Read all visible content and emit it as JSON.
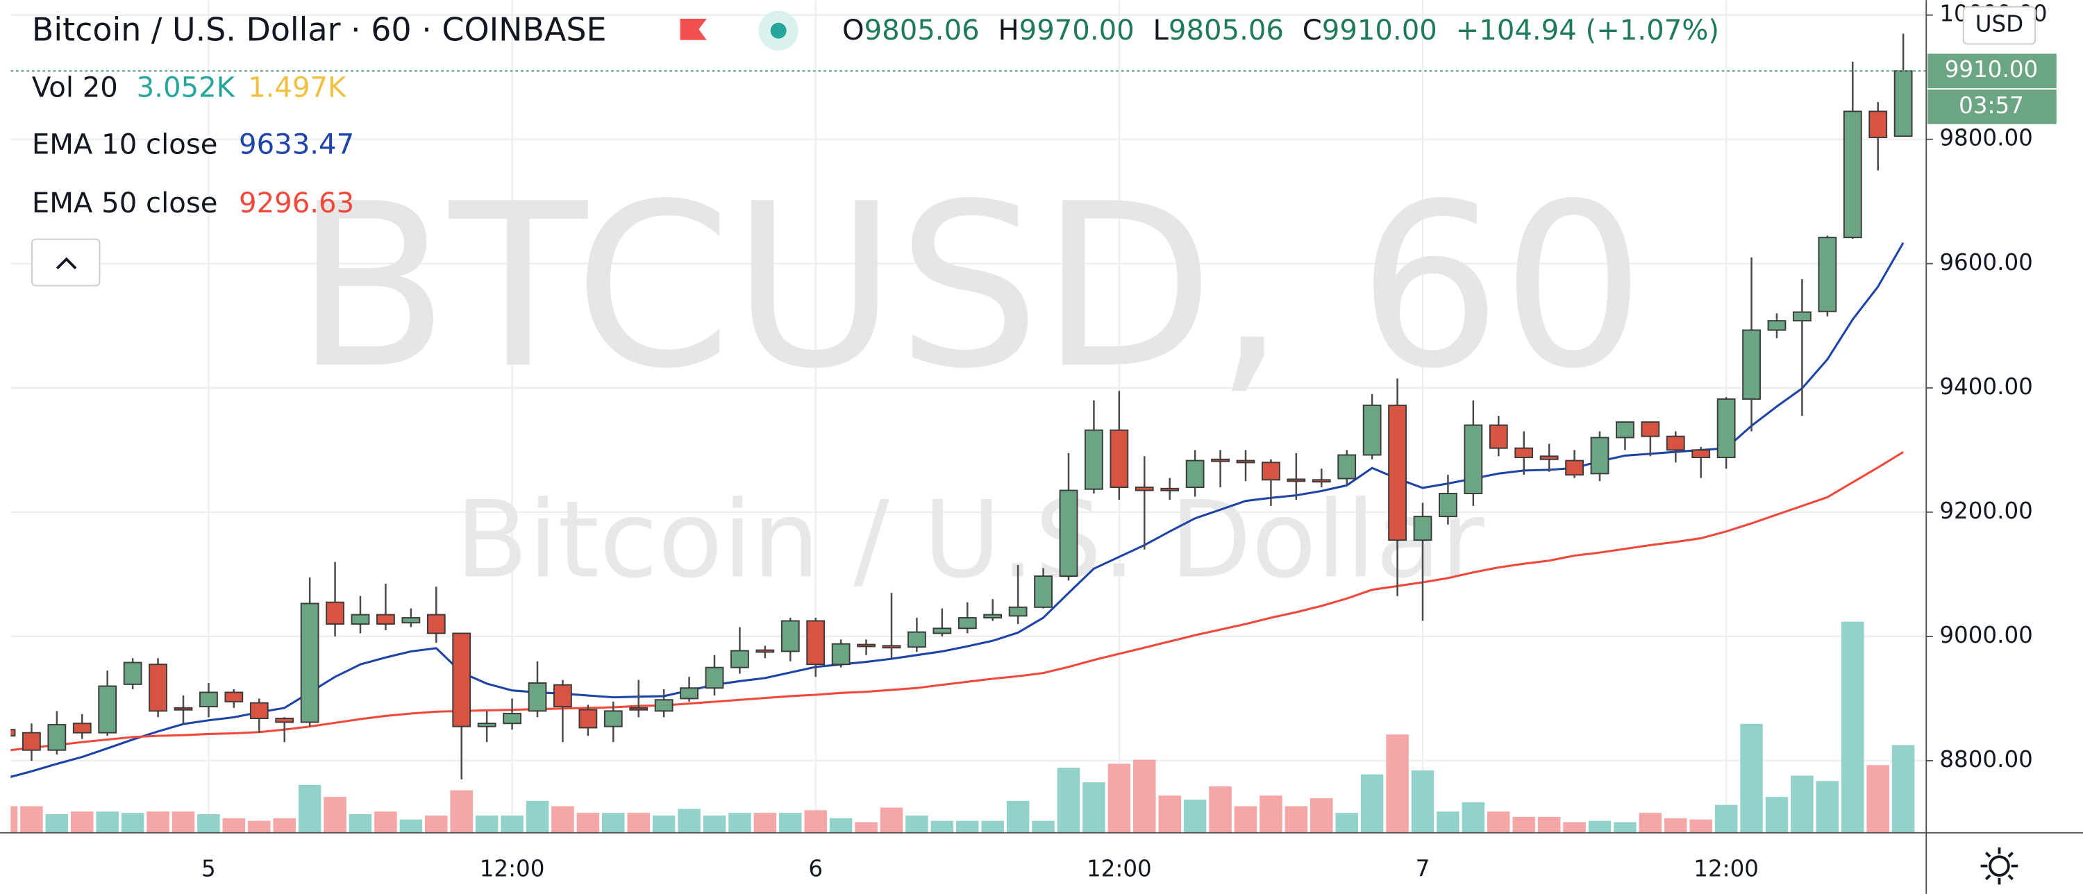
{
  "header": {
    "symbol": "Bitcoin / U.S. Dollar · 60 · COINBASE",
    "ohlc": [
      {
        "label": "O",
        "value": "9805.06"
      },
      {
        "label": "H",
        "value": "9970.00"
      },
      {
        "label": "L",
        "value": "9805.06"
      },
      {
        "label": "C",
        "value": "9910.00"
      }
    ],
    "change": "+104.94 (+1.07%)"
  },
  "watermark": {
    "big": "BTCUSD, 60",
    "small": "Bitcoin / U.S. Dollar"
  },
  "currency": "USD",
  "last_price_label": "9910.00",
  "countdown": "03:57",
  "chart_data": {
    "type": "candlestick",
    "categories": [
      null,
      null,
      null,
      null,
      null,
      null,
      null,
      null,
      "5",
      null,
      null,
      null,
      null,
      null,
      null,
      null,
      null,
      null,
      null,
      null,
      "12:00",
      null,
      null,
      null,
      null,
      null,
      null,
      null,
      null,
      null,
      null,
      null,
      "6",
      null,
      null,
      null,
      null,
      null,
      null,
      null,
      null,
      null,
      null,
      null,
      "12:00",
      null,
      null,
      null,
      null,
      null,
      null,
      null,
      null,
      null,
      null,
      null,
      "7",
      null,
      null,
      null,
      null,
      null,
      null,
      null,
      null,
      null,
      null,
      null,
      "12:00",
      null,
      null,
      null,
      null,
      null,
      null,
      null
    ],
    "open": [
      8850,
      8845,
      8817,
      8860,
      8845,
      8923,
      8955,
      8885,
      8887,
      8910,
      8893,
      8868,
      8862,
      9055,
      9020,
      9035,
      9022,
      9035,
      9005,
      8855,
      8860,
      8880,
      8922,
      8882,
      8855,
      8885,
      8880,
      8900,
      8917,
      8950,
      8978,
      8976,
      9025,
      8955,
      8987,
      8985,
      8983,
      9005,
      9013,
      9030,
      9033,
      9047,
      9097,
      9237,
      9332,
      9240,
      9238,
      9240,
      9285,
      9283,
      9280,
      9253,
      9252,
      9254,
      9292,
      9372,
      9155,
      9193,
      9230,
      9340,
      9303,
      9290,
      9283,
      9262,
      9320,
      9345,
      9322,
      9300,
      9288,
      9382,
      9493,
      9508,
      9523,
      9642,
      9845,
      9805.06
    ],
    "high": [
      8860,
      8860,
      8880,
      8875,
      8945,
      8965,
      8965,
      8905,
      8925,
      8915,
      8900,
      8870,
      9095,
      9120,
      9065,
      9085,
      9045,
      9080,
      9005,
      8880,
      8900,
      8960,
      8930,
      8890,
      8895,
      8930,
      8915,
      8935,
      8970,
      9015,
      8985,
      9030,
      9030,
      8995,
      8995,
      9070,
      9030,
      9045,
      9055,
      9060,
      9115,
      9110,
      9295,
      9380,
      9395,
      9290,
      9255,
      9300,
      9300,
      9300,
      9285,
      9295,
      9270,
      9300,
      9390,
      9415,
      9215,
      9260,
      9380,
      9355,
      9330,
      9310,
      9300,
      9330,
      9345,
      9345,
      9330,
      9305,
      9385,
      9610,
      9520,
      9575,
      9645,
      9925,
      9860,
      9970
    ],
    "low": [
      8830,
      8800,
      8810,
      8835,
      8840,
      8915,
      8870,
      8860,
      8870,
      8885,
      8845,
      8830,
      8855,
      9000,
      9005,
      9010,
      9015,
      8990,
      8770,
      8830,
      8850,
      8870,
      8830,
      8840,
      8830,
      8870,
      8870,
      8895,
      8905,
      8940,
      8965,
      8960,
      8935,
      8950,
      8970,
      8965,
      8975,
      9000,
      9005,
      9025,
      9020,
      9045,
      9090,
      9230,
      9220,
      9140,
      9220,
      9225,
      9240,
      9250,
      9210,
      9220,
      9240,
      9245,
      9285,
      9065,
      9025,
      9180,
      9210,
      9290,
      9260,
      9265,
      9255,
      9250,
      9300,
      9290,
      9280,
      9255,
      9270,
      9330,
      9480,
      9355,
      9515,
      9640,
      9750,
      9805.06
    ],
    "close": [
      8840,
      8817,
      8858,
      8845,
      8920,
      8958,
      8880,
      8882,
      8910,
      8895,
      8868,
      8862,
      9053,
      9020,
      9035,
      9020,
      9030,
      9005,
      8855,
      8860,
      8876,
      8925,
      8887,
      8853,
      8880,
      8882,
      8898,
      8917,
      8950,
      8977,
      8975,
      9025,
      8955,
      8988,
      8985,
      8982,
      9007,
      9013,
      9030,
      9035,
      9047,
      9097,
      9235,
      9332,
      9240,
      9235,
      9235,
      9283,
      9282,
      9280,
      9252,
      9250,
      9250,
      9292,
      9372,
      9155,
      9193,
      9230,
      9340,
      9303,
      9288,
      9285,
      9260,
      9320,
      9345,
      9322,
      9300,
      9288,
      9382,
      9493,
      9508,
      9522,
      9642,
      9845,
      9803,
      9910
    ],
    "volume": [
      924,
      924,
      647,
      739,
      739,
      693,
      739,
      739,
      647,
      508,
      416,
      508,
      1663,
      1247,
      647,
      739,
      462,
      600,
      1478,
      600,
      600,
      1109,
      924,
      693,
      693,
      693,
      600,
      832,
      600,
      693,
      693,
      693,
      785,
      508,
      370,
      878,
      600,
      416,
      416,
      416,
      1109,
      416,
      2264,
      1756,
      2402,
      2541,
      1294,
      1155,
      1617,
      924,
      1294,
      924,
      1201,
      693,
      2033,
      3419,
      2171,
      739,
      1063,
      739,
      554,
      554,
      370,
      416,
      370,
      693,
      508,
      462,
      970,
      3788,
      1247,
      1987,
      1802,
      7346,
      2356,
      3052
    ],
    "volume_legend": {
      "name": "Vol 20",
      "labels": [
        "3.052K",
        "1.497K"
      ],
      "colors": [
        "#26a69a",
        "#f0c040"
      ]
    },
    "series": [
      {
        "name": "EMA 10 close",
        "color": "#1e44a8",
        "legend_value": "9633.47",
        "values": [
          8772,
          8783,
          8795,
          8806,
          8820,
          8834,
          8847,
          8859,
          8865,
          8870,
          8878,
          8885,
          8910,
          8935,
          8955,
          8966,
          8976,
          8981,
          8942,
          8924,
          8913,
          8910,
          8908,
          8905,
          8902,
          8903,
          8904,
          8913,
          8922,
          8928,
          8933,
          8942,
          8951,
          8955,
          8959,
          8964,
          8970,
          8976,
          8984,
          8993,
          9006,
          9030,
          9070,
          9109,
          9128,
          9147,
          9169,
          9190,
          9204,
          9218,
          9223,
          9227,
          9234,
          9243,
          9271,
          9254,
          9239,
          9246,
          9254,
          9262,
          9267,
          9268,
          9271,
          9282,
          9291,
          9294,
          9297,
          9300,
          9303,
          9339,
          9370,
          9399,
          9446,
          9510,
          9563,
          9633.47
        ]
      },
      {
        "name": "EMA 50 close",
        "color": "#f0483a",
        "legend_value": "9296.63",
        "values": [
          8816,
          8821,
          8825,
          8830,
          8834,
          8838,
          8840,
          8841,
          8843,
          8844,
          8846,
          8850,
          8855,
          8861,
          8867,
          8872,
          8876,
          8879,
          8880,
          8881,
          8882,
          8883,
          8884,
          8885,
          8886,
          8888,
          8889,
          8892,
          8895,
          8898,
          8901,
          8904,
          8906,
          8909,
          8911,
          8914,
          8917,
          8922,
          8927,
          8932,
          8936,
          8941,
          8951,
          8962,
          8972,
          8982,
          8992,
          9002,
          9011,
          9020,
          9030,
          9039,
          9049,
          9061,
          9075,
          9081,
          9087,
          9094,
          9103,
          9111,
          9117,
          9122,
          9130,
          9135,
          9141,
          9147,
          9152,
          9158,
          9169,
          9182,
          9196,
          9210,
          9224,
          9248,
          9272,
          9296.63
        ]
      }
    ],
    "ylim": [
      8684,
      10024
    ],
    "yticks": [
      {
        "value": 8800,
        "label": "8800.00"
      },
      {
        "value": 9000,
        "label": "9000.00"
      },
      {
        "value": 9200,
        "label": "9200.00"
      },
      {
        "value": 9400,
        "label": "9400.00"
      },
      {
        "value": 9600,
        "label": "9600.00"
      },
      {
        "value": 9800,
        "label": "9800.00"
      },
      {
        "value": 10000,
        "label": "10000.00"
      }
    ],
    "grid": true,
    "up_color": "#6ba583",
    "down_color": "#d75442",
    "volume_up_color": "#93d2cb",
    "volume_down_color": "#f5a6a6"
  }
}
